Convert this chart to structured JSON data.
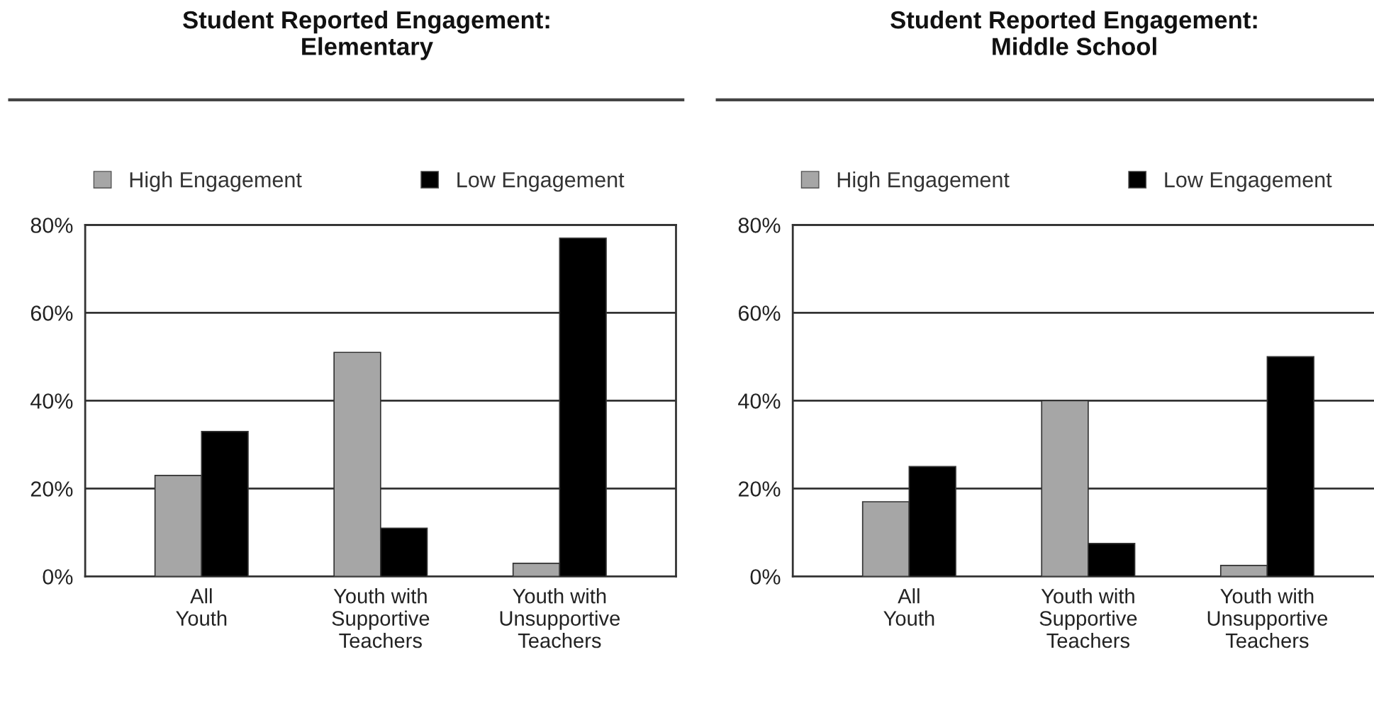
{
  "chart_data": [
    {
      "type": "bar",
      "title": "Student Reported Engagement:\nElementary",
      "categories": [
        "All\nYouth",
        "Youth with\nSupportive\nTeachers",
        "Youth with\nUnsupportive\nTeachers"
      ],
      "series": [
        {
          "name": "High Engagement",
          "color": "#a6a6a6",
          "values": [
            23,
            51,
            3
          ]
        },
        {
          "name": "Low Engagement",
          "color": "#000000",
          "values": [
            33,
            11,
            77
          ]
        }
      ],
      "ylim": [
        0,
        80
      ],
      "yticks": [
        {
          "value": 0,
          "label": "0%"
        },
        {
          "value": 20,
          "label": "20%"
        },
        {
          "value": 40,
          "label": "40%"
        },
        {
          "value": 60,
          "label": "60%"
        },
        {
          "value": 80,
          "label": "80%"
        }
      ],
      "grid": "y",
      "legend": "top left"
    },
    {
      "type": "bar",
      "title": "Student Reported Engagement:\nMiddle School",
      "categories": [
        "All\nYouth",
        "Youth with\nSupportive\nTeachers",
        "Youth with\nUnsupportive\nTeachers"
      ],
      "series": [
        {
          "name": "High Engagement",
          "color": "#a6a6a6",
          "values": [
            17,
            40,
            2.5
          ]
        },
        {
          "name": "Low Engagement",
          "color": "#000000",
          "values": [
            25,
            7.5,
            50
          ]
        }
      ],
      "ylim": [
        0,
        80
      ],
      "yticks": [
        {
          "value": 0,
          "label": "0%"
        },
        {
          "value": 20,
          "label": "20%"
        },
        {
          "value": 40,
          "label": "40%"
        },
        {
          "value": 60,
          "label": "60%"
        },
        {
          "value": 80,
          "label": "80%"
        }
      ],
      "grid": "y",
      "legend": "top left"
    }
  ]
}
